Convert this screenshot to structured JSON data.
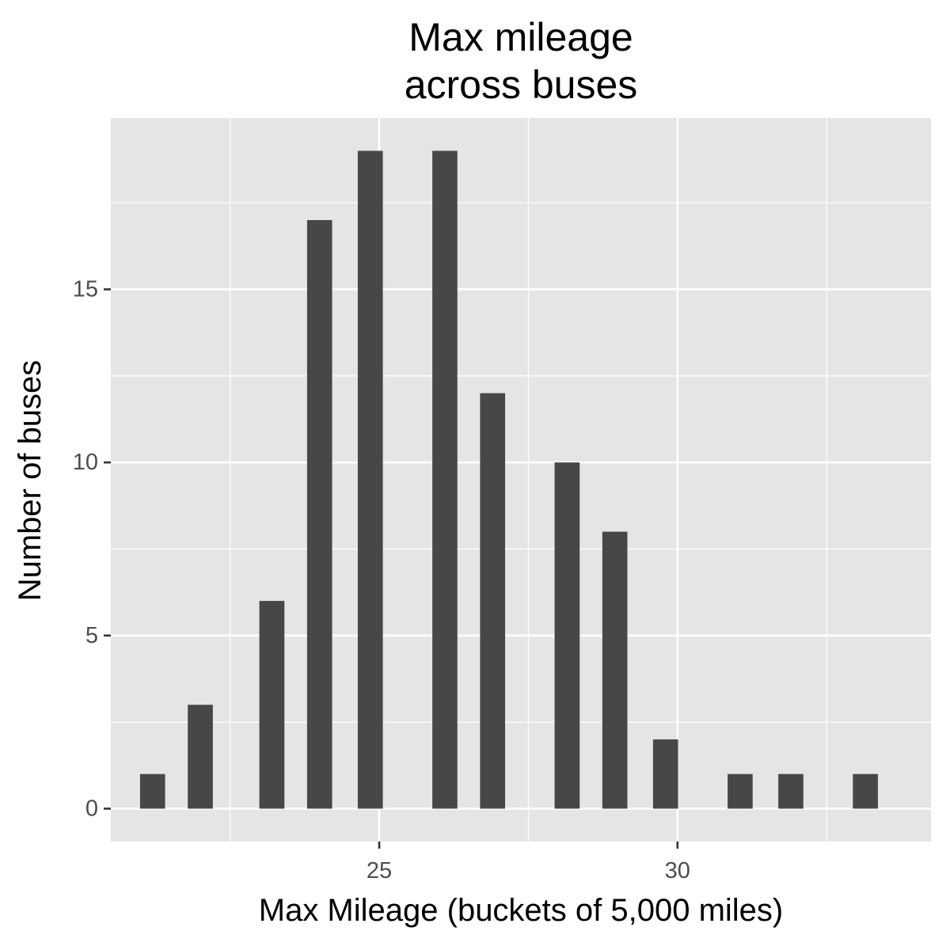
{
  "chart_data": {
    "type": "bar",
    "title_lines": [
      "Max mileage",
      "across buses"
    ],
    "xlabel": "Max Mileage (buckets of 5,000 miles)",
    "ylabel": "Number of buses",
    "x": [
      21.2,
      22.0,
      23.2,
      24.0,
      24.85,
      26.1,
      26.9,
      28.15,
      28.95,
      29.8,
      31.05,
      31.9,
      33.15
    ],
    "values": [
      1,
      3,
      6,
      17,
      19,
      19,
      12,
      10,
      8,
      2,
      1,
      1,
      1
    ],
    "bar_width": 0.42,
    "xlim": [
      20.5,
      34.25
    ],
    "ylim": [
      -0.95,
      19.95
    ],
    "x_ticks": [
      25,
      30
    ],
    "x_tick_labels": [
      "25",
      "30"
    ],
    "x_minor_ticks": [
      22.5,
      27.5,
      32.5
    ],
    "y_ticks": [
      0,
      5,
      10,
      15
    ],
    "y_tick_labels": [
      "0",
      "5",
      "10",
      "15"
    ],
    "y_minor_ticks": [
      2.5,
      7.5,
      12.5,
      17.5
    ],
    "grid": true,
    "legend": "none",
    "colors": {
      "panel": "#e5e5e5",
      "bar": "#474747",
      "grid": "#ffffff",
      "tick_text": "#4d4d4d",
      "tick_mark": "#333333"
    }
  }
}
